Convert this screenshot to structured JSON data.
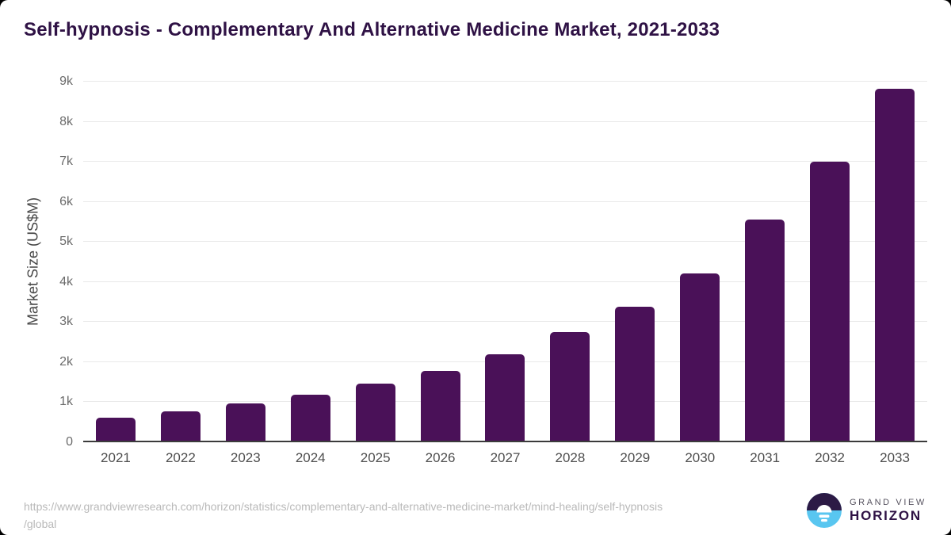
{
  "header": {
    "title": "Self-hypnosis - Complementary And Alternative Medicine Market, 2021-2033"
  },
  "chart_data": {
    "type": "bar",
    "title": "Self-hypnosis - Complementary And Alternative Medicine Market, 2021-2033",
    "categories": [
      "2021",
      "2022",
      "2023",
      "2024",
      "2025",
      "2026",
      "2027",
      "2028",
      "2029",
      "2030",
      "2031",
      "2032",
      "2033"
    ],
    "values": [
      615,
      780,
      965,
      1185,
      1460,
      1785,
      2205,
      2740,
      3375,
      4215,
      5550,
      7010,
      8820
    ],
    "xlabel": "",
    "ylabel": "Market Size (US$M)",
    "ylim": [
      0,
      9000
    ],
    "grid": true,
    "legend": "none",
    "y_ticks": [
      {
        "value": 0,
        "label": "0"
      },
      {
        "value": 1000,
        "label": "1k"
      },
      {
        "value": 2000,
        "label": "2k"
      },
      {
        "value": 3000,
        "label": "3k"
      },
      {
        "value": 4000,
        "label": "4k"
      },
      {
        "value": 5000,
        "label": "5k"
      },
      {
        "value": 6000,
        "label": "6k"
      },
      {
        "value": 7000,
        "label": "7k"
      },
      {
        "value": 8000,
        "label": "8k"
      },
      {
        "value": 9000,
        "label": "9k"
      }
    ],
    "bar_color": "#4a1158"
  },
  "footer": {
    "source_url_line1": "https://www.grandviewresearch.com/horizon/statistics/complementary-and-alternative-medicine-market/mind-healing/self-hypnosis",
    "source_url_line2": "/global",
    "logo": {
      "line1": "GRAND VIEW",
      "line2": "HORIZON",
      "icon_dark_color": "#2c1a45",
      "icon_blue_color": "#59c6f0"
    }
  },
  "colors": {
    "title": "#2f1245",
    "bar": "#4a1158",
    "gridline": "#e9e9e9",
    "axis_line": "#3b3b3b",
    "y_tick_label": "#6b6b6b",
    "x_tick_label": "#4f4f4f",
    "source_text": "#b9b9b9",
    "background": "#ffffff"
  }
}
